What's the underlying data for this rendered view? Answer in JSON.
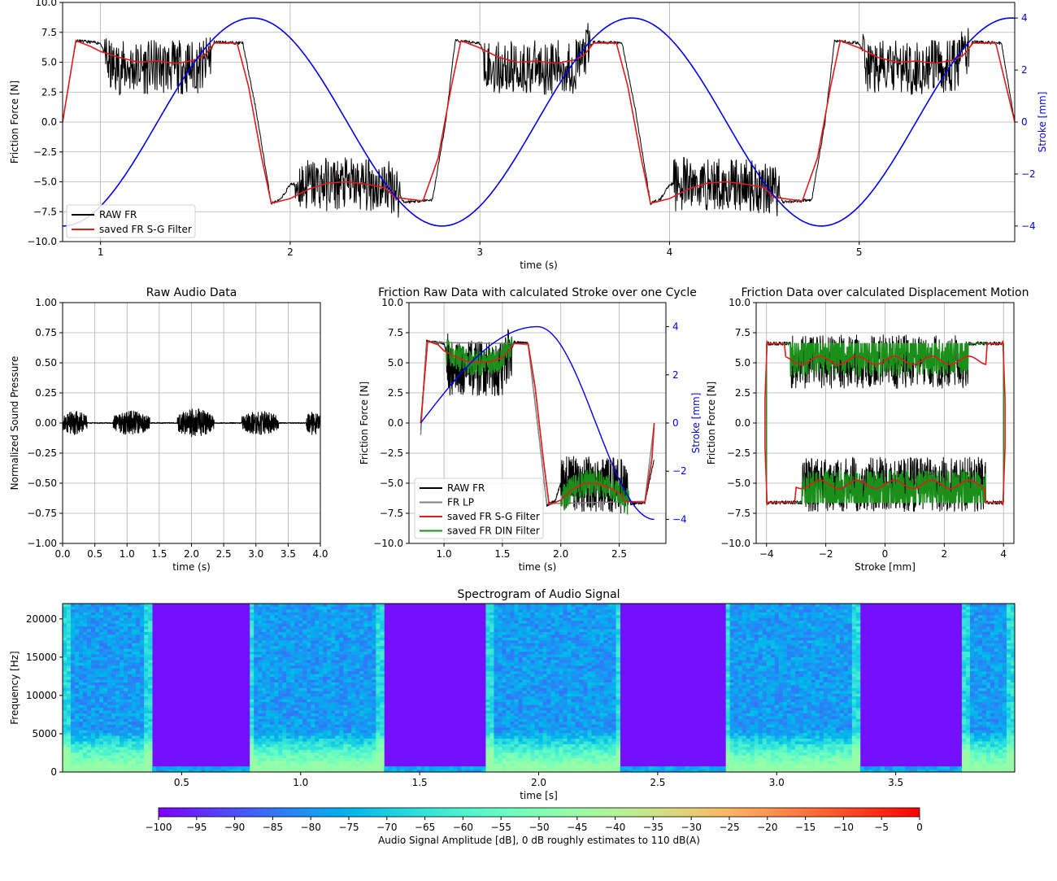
{
  "chart_data": [
    {
      "id": "top",
      "type": "line",
      "xlabel": "time (s)",
      "ylabel": "Friction Force [N]",
      "y2label": "Stroke [mm]",
      "xlim": [
        0.8,
        5.82
      ],
      "ylim": [
        -10,
        10
      ],
      "y2lim": [
        -4.6,
        4.6
      ],
      "xticks": [
        1,
        2,
        3,
        4,
        5
      ],
      "yticks": [
        -10,
        -7.5,
        -5,
        -2.5,
        0,
        2.5,
        5,
        7.5,
        10
      ],
      "y2ticks": [
        -4,
        -2,
        0,
        2,
        4
      ],
      "grid": true,
      "legend": {
        "placement": "lower-left",
        "entries": [
          "RAW FR",
          "saved FR S-G Filter"
        ]
      },
      "series": [
        {
          "name": "RAW FR",
          "color": "#000000",
          "points": [
            [
              0.8,
              0
            ],
            [
              0.87,
              6.8
            ],
            [
              1.0,
              6.6
            ],
            [
              1.05,
              4.5
            ],
            [
              1.3,
              4.6
            ],
            [
              1.55,
              4.6
            ],
            [
              1.6,
              6.7
            ],
            [
              1.75,
              6.6
            ],
            [
              1.82,
              1
            ],
            [
              1.9,
              -6.8
            ],
            [
              1.95,
              -6.5
            ],
            [
              2.0,
              -5.2
            ],
            [
              2.3,
              -5.2
            ],
            [
              2.55,
              -5.4
            ],
            [
              2.6,
              -6.7
            ],
            [
              2.75,
              -6.5
            ],
            [
              2.82,
              0
            ],
            [
              2.87,
              6.8
            ],
            [
              3.0,
              6.6
            ],
            [
              3.05,
              4.5
            ],
            [
              3.5,
              4.6
            ],
            [
              3.6,
              6.7
            ],
            [
              3.75,
              6.6
            ],
            [
              3.82,
              1
            ],
            [
              3.9,
              -6.8
            ],
            [
              3.95,
              -6.5
            ],
            [
              4.0,
              -5.2
            ],
            [
              4.3,
              -5.2
            ],
            [
              4.55,
              -5.4
            ],
            [
              4.6,
              -6.7
            ],
            [
              4.75,
              -6.5
            ],
            [
              4.82,
              0
            ],
            [
              4.87,
              6.8
            ],
            [
              5.0,
              6.6
            ],
            [
              5.05,
              4.5
            ],
            [
              5.5,
              4.6
            ],
            [
              5.6,
              6.7
            ],
            [
              5.75,
              6.6
            ],
            [
              5.82,
              0
            ]
          ]
        },
        {
          "name": "saved FR S-G Filter",
          "color": "#e31a1c",
          "points": [
            [
              0.8,
              0
            ],
            [
              0.87,
              6.8
            ],
            [
              0.95,
              6.3
            ],
            [
              1.0,
              5.9
            ],
            [
              1.1,
              5.4
            ],
            [
              1.2,
              5.0
            ],
            [
              1.3,
              5.1
            ],
            [
              1.4,
              4.9
            ],
            [
              1.5,
              5.2
            ],
            [
              1.55,
              5.6
            ],
            [
              1.6,
              6.6
            ],
            [
              1.72,
              6.6
            ],
            [
              1.78,
              3
            ],
            [
              1.85,
              -3
            ],
            [
              1.9,
              -6.8
            ],
            [
              2.0,
              -6.4
            ],
            [
              2.1,
              -5.6
            ],
            [
              2.2,
              -5.1
            ],
            [
              2.3,
              -5.0
            ],
            [
              2.4,
              -5.2
            ],
            [
              2.5,
              -5.5
            ],
            [
              2.55,
              -6.3
            ],
            [
              2.7,
              -6.6
            ],
            [
              2.78,
              -3
            ],
            [
              2.85,
              3
            ],
            [
              2.9,
              6.8
            ],
            [
              3.0,
              6.2
            ],
            [
              3.1,
              5.4
            ],
            [
              3.2,
              5.0
            ],
            [
              3.3,
              5.1
            ],
            [
              3.4,
              4.9
            ],
            [
              3.5,
              5.2
            ],
            [
              3.55,
              5.6
            ],
            [
              3.6,
              6.6
            ],
            [
              3.72,
              6.6
            ],
            [
              3.78,
              3
            ],
            [
              3.85,
              -3
            ],
            [
              3.9,
              -6.8
            ],
            [
              4.0,
              -6.4
            ],
            [
              4.1,
              -5.6
            ],
            [
              4.2,
              -5.1
            ],
            [
              4.3,
              -5.0
            ],
            [
              4.4,
              -5.2
            ],
            [
              4.5,
              -5.5
            ],
            [
              4.55,
              -6.3
            ],
            [
              4.7,
              -6.6
            ],
            [
              4.78,
              -3
            ],
            [
              4.85,
              3
            ],
            [
              4.9,
              6.8
            ],
            [
              5.0,
              6.2
            ],
            [
              5.1,
              5.4
            ],
            [
              5.2,
              5.0
            ],
            [
              5.3,
              5.1
            ],
            [
              5.4,
              4.9
            ],
            [
              5.5,
              5.2
            ],
            [
              5.55,
              5.6
            ],
            [
              5.6,
              6.6
            ],
            [
              5.72,
              6.6
            ],
            [
              5.82,
              0
            ]
          ]
        },
        {
          "name": "",
          "axis": "y2",
          "color": "#0000ee",
          "points": [
            [
              0.8,
              -4
            ],
            [
              1.05,
              -3.4
            ],
            [
              1.3,
              -1.6
            ],
            [
              1.55,
              1.6
            ],
            [
              1.8,
              4
            ],
            [
              2.05,
              3.4
            ],
            [
              2.3,
              1.6
            ],
            [
              2.55,
              -1.6
            ],
            [
              2.8,
              -4
            ],
            [
              3.05,
              -3.4
            ],
            [
              3.3,
              -1.6
            ],
            [
              3.55,
              1.6
            ],
            [
              3.8,
              4
            ],
            [
              4.05,
              3.4
            ],
            [
              4.3,
              1.6
            ],
            [
              4.55,
              -1.6
            ],
            [
              4.8,
              -4
            ],
            [
              5.05,
              -3.4
            ],
            [
              5.3,
              -1.6
            ],
            [
              5.55,
              1.6
            ],
            [
              5.8,
              4
            ]
          ]
        }
      ]
    },
    {
      "id": "audio",
      "type": "line",
      "title": "Raw Audio Data",
      "xlabel": "time (s)",
      "ylabel": "Normalized Sound Pressure",
      "xlim": [
        0,
        4
      ],
      "ylim": [
        -1,
        1
      ],
      "xticks": [
        0.0,
        0.5,
        1.0,
        1.5,
        2.0,
        2.5,
        3.0,
        3.5,
        4.0
      ],
      "yticks": [
        -1.0,
        -0.75,
        -0.5,
        -0.25,
        0.0,
        0.25,
        0.5,
        0.75,
        1.0
      ],
      "grid": true,
      "bursts": [
        [
          0.0,
          0.38,
          0.1
        ],
        [
          0.78,
          1.35,
          0.1
        ],
        [
          1.78,
          2.35,
          0.12
        ],
        [
          2.78,
          3.35,
          0.1
        ],
        [
          3.78,
          4.0,
          0.1
        ]
      ],
      "series": [
        {
          "name": "",
          "color": "#000000"
        }
      ]
    },
    {
      "id": "cycle",
      "type": "line",
      "title": "Friction Raw Data with calculated Stroke over one Cycle",
      "xlabel": "time (s)",
      "ylabel": "Friction Force [N]",
      "y2label": "Stroke [mm]",
      "xlim": [
        0.7,
        2.9
      ],
      "ylim": [
        -10,
        10
      ],
      "y2lim": [
        -5,
        5
      ],
      "xticks": [
        1.0,
        1.5,
        2.0,
        2.5
      ],
      "yticks": [
        -10,
        -7.5,
        -5,
        -2.5,
        0,
        2.5,
        5,
        7.5,
        10
      ],
      "y2ticks": [
        -4,
        -2,
        0,
        2,
        4
      ],
      "grid": true,
      "legend": {
        "placement": "lower-left",
        "entries": [
          "RAW FR",
          "FR LP",
          "saved FR S-G Filter",
          "saved FR DIN Filter"
        ]
      },
      "series": [
        {
          "name": "RAW FR",
          "color": "#000000",
          "points": [
            [
              0.8,
              -0.5
            ],
            [
              0.85,
              6.8
            ],
            [
              1.0,
              6.6
            ],
            [
              1.05,
              4.6
            ],
            [
              1.5,
              4.5
            ],
            [
              1.6,
              6.7
            ],
            [
              1.72,
              6.6
            ],
            [
              1.8,
              0
            ],
            [
              1.88,
              -6.8
            ],
            [
              1.95,
              -6.5
            ],
            [
              2.0,
              -5
            ],
            [
              2.55,
              -5.2
            ],
            [
              2.6,
              -6.7
            ],
            [
              2.72,
              -6.6
            ],
            [
              2.8,
              -3
            ]
          ]
        },
        {
          "name": "FR LP",
          "color": "#808080",
          "points": [
            [
              0.8,
              -1
            ],
            [
              0.85,
              6.7
            ],
            [
              1.6,
              6.6
            ],
            [
              1.72,
              6.5
            ],
            [
              1.8,
              0
            ],
            [
              1.88,
              -6.7
            ],
            [
              2.72,
              -6.5
            ],
            [
              2.8,
              0
            ]
          ]
        },
        {
          "name": "saved FR S-G Filter",
          "color": "#e31a1c",
          "points": [
            [
              0.8,
              0
            ],
            [
              0.86,
              6.8
            ],
            [
              0.95,
              6.5
            ],
            [
              1.0,
              6.0
            ],
            [
              1.1,
              5.5
            ],
            [
              1.2,
              5.1
            ],
            [
              1.3,
              5.0
            ],
            [
              1.4,
              5.1
            ],
            [
              1.5,
              5.4
            ],
            [
              1.6,
              6.6
            ],
            [
              1.72,
              6.6
            ],
            [
              1.78,
              3
            ],
            [
              1.85,
              -3
            ],
            [
              1.9,
              -6.8
            ],
            [
              2.0,
              -6.4
            ],
            [
              2.1,
              -5.5
            ],
            [
              2.2,
              -5.0
            ],
            [
              2.3,
              -5.0
            ],
            [
              2.4,
              -5.3
            ],
            [
              2.5,
              -5.8
            ],
            [
              2.55,
              -6.5
            ],
            [
              2.72,
              -6.6
            ],
            [
              2.78,
              -3
            ],
            [
              2.8,
              0
            ]
          ]
        },
        {
          "name": "saved FR DIN Filter",
          "color": "#1a8f1a",
          "points": [
            [
              0.8,
              0
            ],
            [
              0.86,
              6.8
            ],
            [
              0.95,
              6.5
            ],
            [
              1.0,
              6.0
            ],
            [
              1.1,
              5.5
            ],
            [
              1.2,
              5.1
            ],
            [
              1.3,
              5.0
            ],
            [
              1.4,
              5.1
            ],
            [
              1.5,
              5.4
            ],
            [
              1.6,
              6.6
            ],
            [
              1.72,
              6.6
            ],
            [
              1.78,
              3
            ],
            [
              1.85,
              -3
            ],
            [
              1.9,
              -6.8
            ],
            [
              2.0,
              -6.4
            ],
            [
              2.1,
              -5.5
            ],
            [
              2.2,
              -5.0
            ],
            [
              2.3,
              -5.0
            ],
            [
              2.4,
              -5.3
            ],
            [
              2.5,
              -5.8
            ],
            [
              2.55,
              -6.5
            ],
            [
              2.72,
              -6.6
            ],
            [
              2.78,
              -3
            ],
            [
              2.8,
              0
            ]
          ]
        },
        {
          "name": "",
          "axis": "y2",
          "color": "#0000ee",
          "points": [
            [
              0.8,
              0
            ],
            [
              1.05,
              1.6
            ],
            [
              1.3,
              2.9
            ],
            [
              1.55,
              3.8
            ],
            [
              1.8,
              4
            ],
            [
              2.05,
              3.0
            ],
            [
              2.3,
              1.2
            ],
            [
              2.55,
              -1.8
            ],
            [
              2.8,
              -4
            ]
          ]
        }
      ]
    },
    {
      "id": "disp",
      "type": "line",
      "title": "Friction Data over calculated Displacement Motion",
      "xlabel": "Stroke [mm]",
      "ylabel": "Friction Force [N]",
      "xlim": [
        -4.35,
        4.35
      ],
      "ylim": [
        -10,
        10
      ],
      "xticks": [
        -4,
        -2,
        0,
        2,
        4
      ],
      "yticks": [
        -10,
        -7.5,
        -5,
        -2.5,
        0,
        2.5,
        5,
        7.5,
        10
      ],
      "grid": true,
      "series": [
        {
          "name": "",
          "color": "#000000"
        },
        {
          "name": "",
          "color": "#1a8f1a"
        },
        {
          "name": "",
          "color": "#e31a1c"
        }
      ]
    },
    {
      "id": "spec",
      "type": "heatmap",
      "title": "Spectrogram of Audio Signal",
      "xlabel": "time [s]",
      "ylabel": "Frequency [Hz]",
      "xlim": [
        0,
        4
      ],
      "ylim": [
        0,
        22000
      ],
      "xticks": [
        0.5,
        1.0,
        1.5,
        2.0,
        2.5,
        3.0,
        3.5
      ],
      "yticks": [
        0,
        5000,
        10000,
        15000,
        20000
      ],
      "active_intervals": [
        [
          0.0,
          0.38
        ],
        [
          0.78,
          1.35
        ],
        [
          1.78,
          2.35
        ],
        [
          2.78,
          3.35
        ],
        [
          3.78,
          4.0
        ]
      ],
      "colorbar": {
        "label": "Audio Signal Amplitude [dB], 0 dB roughly estimates to 110 dB(A)",
        "min": -100,
        "max": 0,
        "ticks": [
          -100,
          -95,
          -90,
          -85,
          -80,
          -75,
          -70,
          -65,
          -60,
          -55,
          -50,
          -45,
          -40,
          -35,
          -30,
          -25,
          -20,
          -15,
          -10,
          -5,
          0
        ],
        "colormap": "rainbow"
      }
    }
  ]
}
